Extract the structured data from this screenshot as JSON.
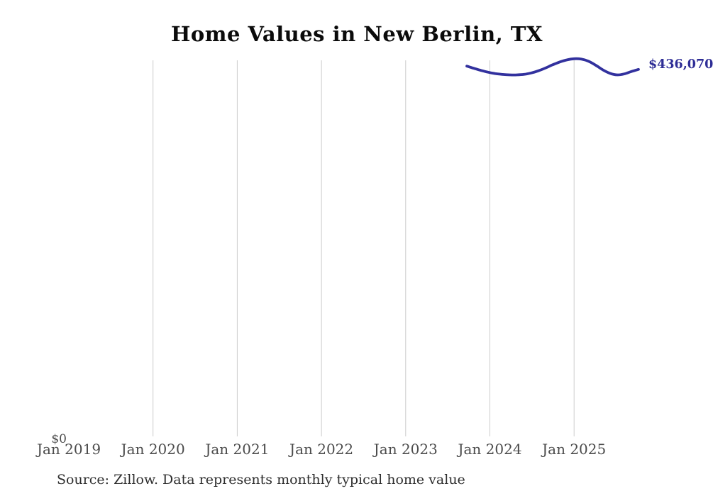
{
  "title": "Home Values in New Berlin, TX",
  "source_note": "Source: Zillow. Data represents monthly typical home value",
  "chart_data": {
    "type": "line",
    "title": "Home Values in New Berlin, TX",
    "xlabel": "",
    "ylabel": "",
    "y_axis": {
      "min": 0,
      "min_label": "$0",
      "gridlines": false
    },
    "x_axis": {
      "tick_labels": [
        "Jan 2019",
        "Jan 2020",
        "Jan 2021",
        "Jan 2022",
        "Jan 2023",
        "Jan 2024",
        "Jan 2025"
      ],
      "gridlines": true,
      "gridlines_shown_for": [
        "Jan 2020",
        "Jan 2021",
        "Jan 2022",
        "Jan 2023",
        "Jan 2024",
        "Jan 2025"
      ]
    },
    "legend": "none",
    "series": [
      {
        "name": "Monthly typical home value (USD)",
        "months": [
          "2023-10",
          "2023-11",
          "2023-12",
          "2024-01",
          "2024-02",
          "2024-03",
          "2024-04",
          "2024-05",
          "2024-06",
          "2024-07",
          "2024-08",
          "2024-09",
          "2024-10",
          "2024-11",
          "2024-12",
          "2025-01",
          "2025-02",
          "2025-03",
          "2025-04",
          "2025-05",
          "2025-06",
          "2025-07",
          "2025-08",
          "2025-09",
          "2025-10"
        ],
        "values": [
          439900,
          437300,
          434800,
          432700,
          431100,
          430100,
          429600,
          429600,
          430200,
          431900,
          434400,
          437700,
          441500,
          444800,
          447300,
          448600,
          448200,
          445700,
          441100,
          435600,
          431500,
          429600,
          430700,
          433600,
          436070
        ]
      }
    ],
    "end_label": "$436,070",
    "last_value": 436070,
    "colors": {
      "line": "#32319e",
      "end_label": "#2e2d96",
      "gridline": "#cccccc",
      "axis_text": "#4b4b4b",
      "title_text": "#0b0b0b",
      "source_text": "#2e2e2e",
      "background": "#ffffff"
    }
  }
}
